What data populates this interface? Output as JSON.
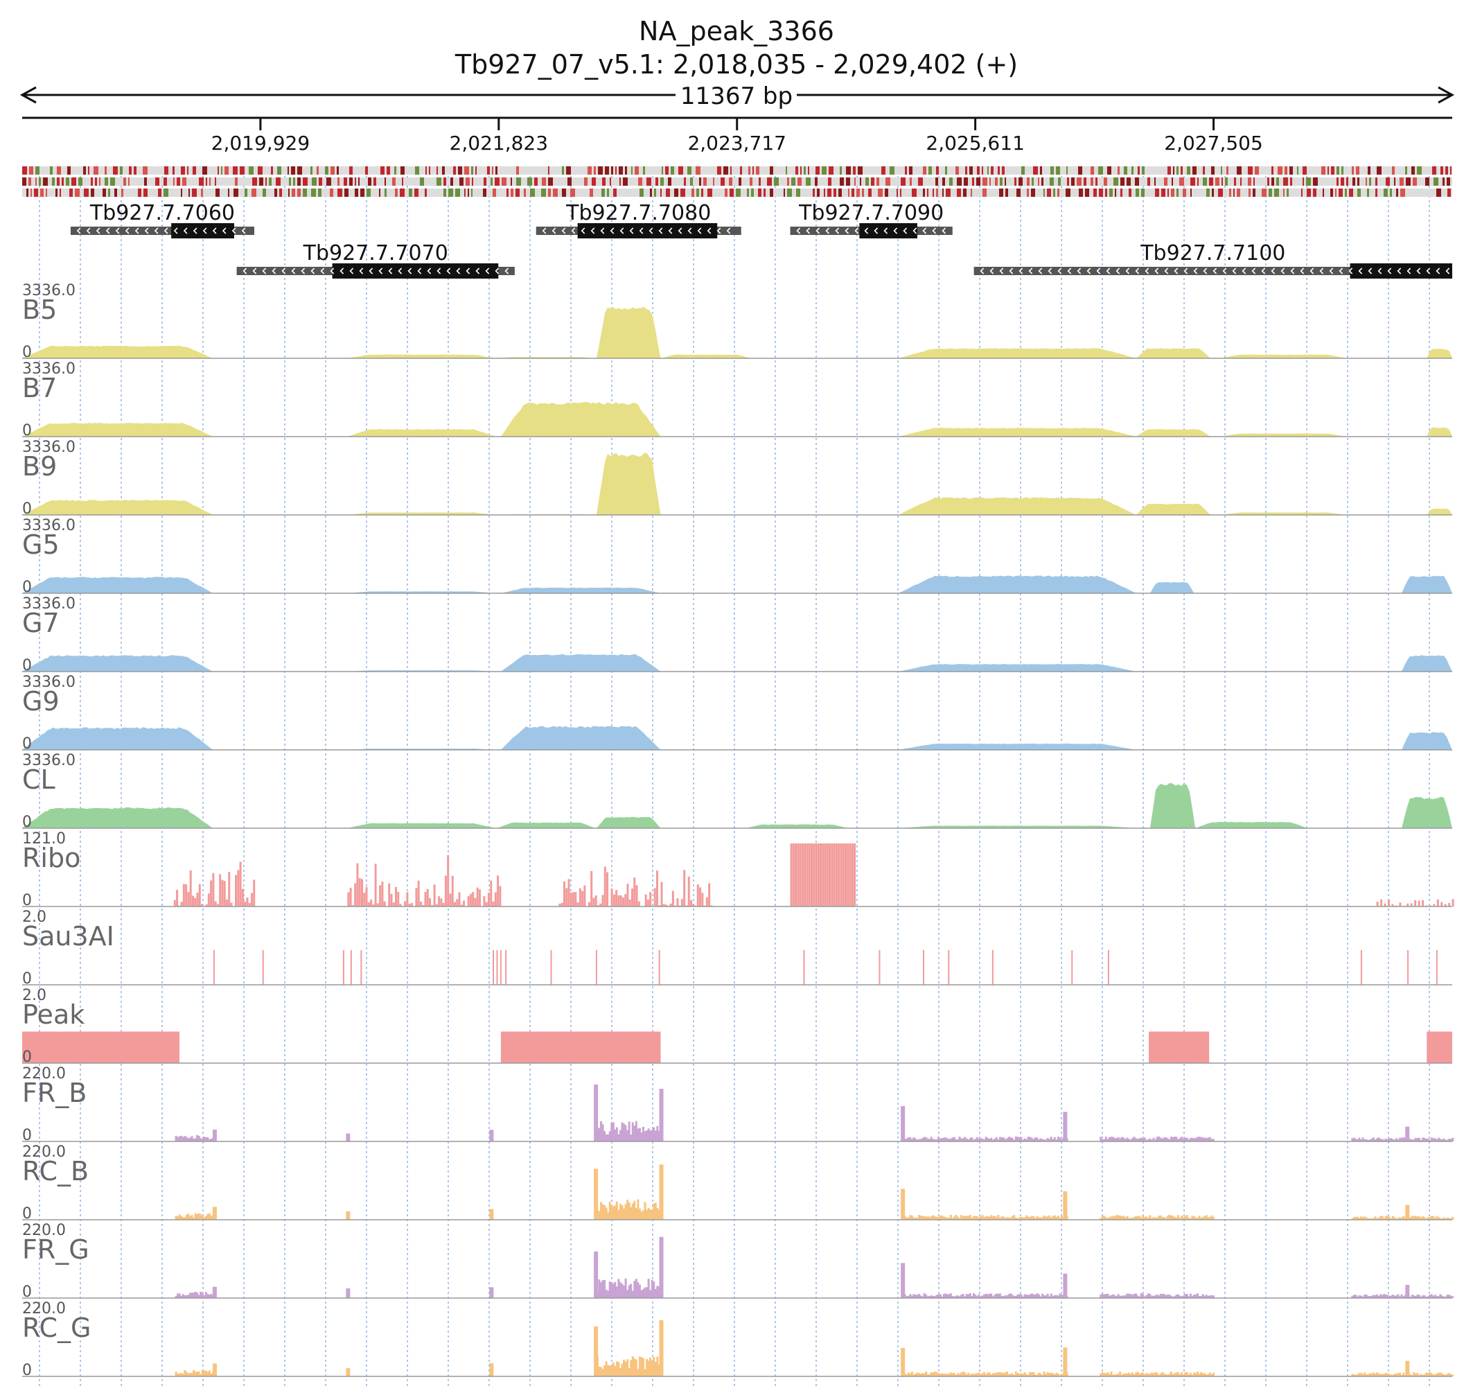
{
  "header": {
    "peak_name": "NA_peak_3366",
    "locus": "Tb927_07_v5.1: 2,018,035 - 2,029,402 (+)",
    "span": "11367 bp"
  },
  "axis": {
    "start": 2018035,
    "end": 2029402,
    "ticks": [
      "2,019,929",
      "2,021,823",
      "2,023,717",
      "2,025,611",
      "2,027,505"
    ],
    "tick_values": [
      2019929,
      2021823,
      2023717,
      2025611,
      2027505
    ]
  },
  "colors": {
    "B": "#e6df85",
    "G": "#9fc6e6",
    "CL": "#99d39b",
    "Ribo": "#f39a9a",
    "Sau3AI": "#f39a9a",
    "Peak": "#f39a9a",
    "FR": "#c9a3d3",
    "RC": "#f8c37e",
    "gene_utr": "#555555",
    "gene_cds": "#111111"
  },
  "genes": [
    {
      "name": "Tb927.7.7060",
      "row": 0,
      "start": 2018420,
      "end": 2019880,
      "cds_start": 2019220,
      "cds_end": 2019720
    },
    {
      "name": "Tb927.7.7070",
      "row": 1,
      "start": 2019740,
      "end": 2021950,
      "cds_start": 2020500,
      "cds_end": 2021820
    },
    {
      "name": "Tb927.7.7080",
      "row": 0,
      "start": 2022120,
      "end": 2023750,
      "cds_start": 2022450,
      "cds_end": 2023560
    },
    {
      "name": "Tb927.7.7090",
      "row": 0,
      "start": 2024140,
      "end": 2025430,
      "cds_start": 2024690,
      "cds_end": 2025150
    },
    {
      "name": "Tb927.7.7100",
      "row": 1,
      "start": 2025600,
      "end": 2029402,
      "cds_start": 2028590,
      "cds_end": 2029402
    }
  ],
  "tracks": [
    {
      "name": "B5",
      "max": "3336.0",
      "min": "0",
      "color_key": "B"
    },
    {
      "name": "B7",
      "max": "3336.0",
      "min": "0",
      "color_key": "B"
    },
    {
      "name": "B9",
      "max": "3336.0",
      "min": "0",
      "color_key": "B"
    },
    {
      "name": "G5",
      "max": "3336.0",
      "min": "0",
      "color_key": "G"
    },
    {
      "name": "G7",
      "max": "3336.0",
      "min": "0",
      "color_key": "G"
    },
    {
      "name": "G9",
      "max": "3336.0",
      "min": "0",
      "color_key": "G"
    },
    {
      "name": "CL",
      "max": "3336.0",
      "min": "0",
      "color_key": "CL"
    },
    {
      "name": "Ribo",
      "max": "121.0",
      "min": "0",
      "color_key": "Ribo"
    },
    {
      "name": "Sau3AI",
      "max": "2.0",
      "min": "0",
      "color_key": "Sau3AI"
    },
    {
      "name": "Peak",
      "max": "2.0",
      "min": "0",
      "color_key": "Peak"
    },
    {
      "name": "FR_B",
      "max": "220.0",
      "min": "0",
      "color_key": "FR"
    },
    {
      "name": "RC_B",
      "max": "220.0",
      "min": "0",
      "color_key": "RC"
    },
    {
      "name": "FR_G",
      "max": "220.0",
      "min": "0",
      "color_key": "FR"
    },
    {
      "name": "RC_G",
      "max": "220.0",
      "min": "0",
      "color_key": "RC"
    }
  ],
  "peaks": [
    {
      "start": 2018035,
      "end": 2019285
    },
    {
      "start": 2021840,
      "end": 2023110
    },
    {
      "start": 2026990,
      "end": 2027470
    },
    {
      "start": 2029200,
      "end": 2029402
    }
  ],
  "sau3ai_sites": [
    2019560,
    2019950,
    2020590,
    2020650,
    2020730,
    2021780,
    2021810,
    2021840,
    2021880,
    2022240,
    2022600,
    2023100,
    2024250,
    2024850,
    2025200,
    2025400,
    2025750,
    2026380,
    2026670,
    2028680,
    2029050,
    2029280
  ]
}
